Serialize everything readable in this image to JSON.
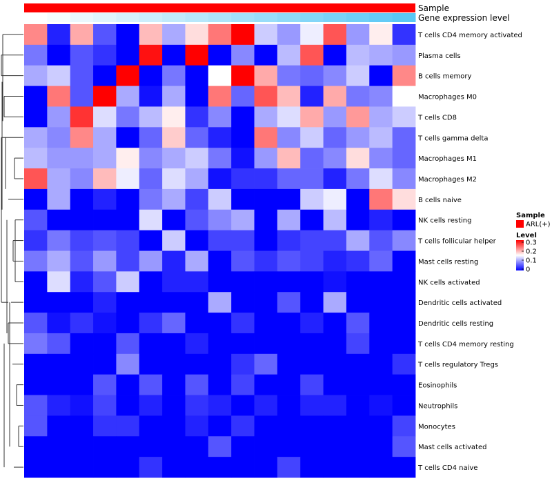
{
  "chart_data": {
    "type": "heatmap",
    "annotation_rows": [
      {
        "name": "Sample",
        "color": "#ff0000"
      },
      {
        "name": "Gene expression level",
        "gradient": [
          "#ffffff",
          "#5ac8f5"
        ]
      }
    ],
    "rows": [
      "T cells CD4 memory activated",
      "Plasma cells",
      "B cells memory",
      "Macrophages M0",
      "T cells CD8",
      "T cells gamma delta",
      "Macrophages M1",
      "Macrophages M2",
      "B cells naive",
      "NK cells resting",
      "T cells follicular helper",
      "Mast cells resting",
      "NK cells activated",
      "Dendritic cells activated",
      "Dendritic cells resting",
      "T cells CD4 memory resting",
      "T cells regulatory  Tregs",
      "Eosinophils",
      "Neutrophils",
      "Monocytes",
      "Mast cells activated",
      "T cells CD4 naive"
    ],
    "values": [
      [
        0.22,
        0.02,
        0.2,
        0.05,
        0.0,
        0.19,
        0.1,
        0.17,
        0.23,
        0.3,
        0.12,
        0.09,
        0.14,
        0.25,
        0.09,
        0.16,
        0.03
      ],
      [
        0.07,
        0.0,
        0.05,
        0.03,
        0.0,
        0.29,
        0.0,
        0.3,
        0.0,
        0.08,
        0.0,
        0.11,
        0.25,
        0.0,
        0.11,
        0.1,
        0.09
      ],
      [
        0.1,
        0.12,
        0.05,
        0.0,
        0.3,
        0.0,
        0.07,
        0.0,
        0.15,
        0.3,
        0.2,
        0.07,
        0.06,
        0.08,
        0.12,
        0.0,
        0.22
      ],
      [
        0.0,
        0.23,
        0.05,
        0.3,
        0.1,
        0.01,
        0.1,
        0.0,
        0.23,
        0.06,
        0.25,
        0.19,
        0.02,
        0.2,
        0.07,
        0.08,
        0.15
      ],
      [
        0.0,
        0.09,
        0.27,
        0.13,
        0.07,
        0.11,
        0.16,
        0.03,
        0.08,
        0.0,
        0.1,
        0.13,
        0.2,
        0.09,
        0.21,
        0.1,
        0.12
      ],
      [
        0.1,
        0.08,
        0.22,
        0.1,
        0.0,
        0.06,
        0.18,
        0.06,
        0.02,
        0.0,
        0.23,
        0.08,
        0.12,
        0.06,
        0.09,
        0.11,
        0.06
      ],
      [
        0.11,
        0.09,
        0.09,
        0.1,
        0.16,
        0.08,
        0.1,
        0.12,
        0.07,
        0.01,
        0.09,
        0.19,
        0.06,
        0.08,
        0.17,
        0.08,
        0.06
      ],
      [
        0.25,
        0.1,
        0.08,
        0.19,
        0.14,
        0.06,
        0.13,
        0.1,
        0.01,
        0.03,
        0.03,
        0.06,
        0.06,
        0.02,
        0.07,
        0.13,
        0.08
      ],
      [
        0.0,
        0.1,
        0.0,
        0.02,
        0.0,
        0.07,
        0.1,
        0.04,
        0.12,
        0.0,
        0.0,
        0.0,
        0.12,
        0.14,
        0.0,
        0.23,
        0.17
      ],
      [
        0.05,
        0.0,
        0.0,
        0.0,
        0.0,
        0.13,
        0.0,
        0.05,
        0.08,
        0.1,
        0.0,
        0.1,
        0.0,
        0.11,
        0.0,
        0.02,
        0.0
      ],
      [
        0.03,
        0.07,
        0.04,
        0.05,
        0.04,
        0.0,
        0.12,
        0.0,
        0.04,
        0.04,
        0.0,
        0.03,
        0.04,
        0.04,
        0.1,
        0.05,
        0.08
      ],
      [
        0.07,
        0.1,
        0.05,
        0.09,
        0.04,
        0.09,
        0.02,
        0.1,
        0.0,
        0.05,
        0.03,
        0.05,
        0.04,
        0.02,
        0.03,
        0.06,
        0.0
      ],
      [
        0.0,
        0.13,
        0.02,
        0.05,
        0.12,
        0.0,
        0.02,
        0.02,
        0.0,
        0.0,
        0.0,
        0.0,
        0.0,
        0.01,
        0.0,
        0.0,
        0.0
      ],
      [
        0.0,
        0.0,
        0.0,
        0.02,
        0.0,
        0.0,
        0.0,
        0.0,
        0.1,
        0.0,
        0.0,
        0.05,
        0.0,
        0.1,
        0.0,
        0.0,
        0.0
      ],
      [
        0.05,
        0.01,
        0.03,
        0.01,
        0.0,
        0.03,
        0.06,
        0.0,
        0.0,
        0.03,
        0.0,
        0.0,
        0.02,
        0.0,
        0.05,
        0.0,
        0.0
      ],
      [
        0.07,
        0.05,
        0.0,
        0.0,
        0.05,
        0.0,
        0.0,
        0.02,
        0.0,
        0.0,
        0.0,
        0.0,
        0.0,
        0.0,
        0.04,
        0.0,
        0.0
      ],
      [
        0.0,
        0.0,
        0.0,
        0.0,
        0.08,
        0.0,
        0.0,
        0.0,
        0.0,
        0.03,
        0.06,
        0.0,
        0.0,
        0.0,
        0.0,
        0.0,
        0.03
      ],
      [
        0.0,
        0.0,
        0.0,
        0.05,
        0.0,
        0.05,
        0.0,
        0.05,
        0.0,
        0.04,
        0.0,
        0.0,
        0.04,
        0.0,
        0.0,
        0.0,
        0.0
      ],
      [
        0.05,
        0.02,
        0.01,
        0.04,
        0.0,
        0.02,
        0.0,
        0.03,
        0.02,
        0.0,
        0.02,
        0.0,
        0.02,
        0.02,
        0.0,
        0.01,
        0.0
      ],
      [
        0.05,
        0.0,
        0.0,
        0.03,
        0.03,
        0.0,
        0.0,
        0.02,
        0.0,
        0.03,
        0.0,
        0.0,
        0.0,
        0.0,
        0.0,
        0.0,
        0.04
      ],
      [
        0.0,
        0.0,
        0.0,
        0.0,
        0.0,
        0.0,
        0.0,
        0.0,
        0.05,
        0.0,
        0.0,
        0.0,
        0.0,
        0.0,
        0.0,
        0.0,
        0.05
      ],
      [
        0.0,
        0.0,
        0.0,
        0.0,
        0.0,
        0.03,
        0.0,
        0.0,
        0.0,
        0.0,
        0.0,
        0.04,
        0.0,
        0.0,
        0.0,
        0.0,
        0.0
      ]
    ],
    "color_scale": {
      "min": 0,
      "mid": 0.15,
      "max": 0.3,
      "colors": [
        "#0000ff",
        "#ffffff",
        "#ff0000"
      ]
    },
    "legend": {
      "sample_title": "Sample",
      "sample_entry": "ARL(+)",
      "level_title": "Level",
      "level_ticks": [
        "0.3",
        "0.2",
        "0.1",
        "0"
      ]
    }
  }
}
